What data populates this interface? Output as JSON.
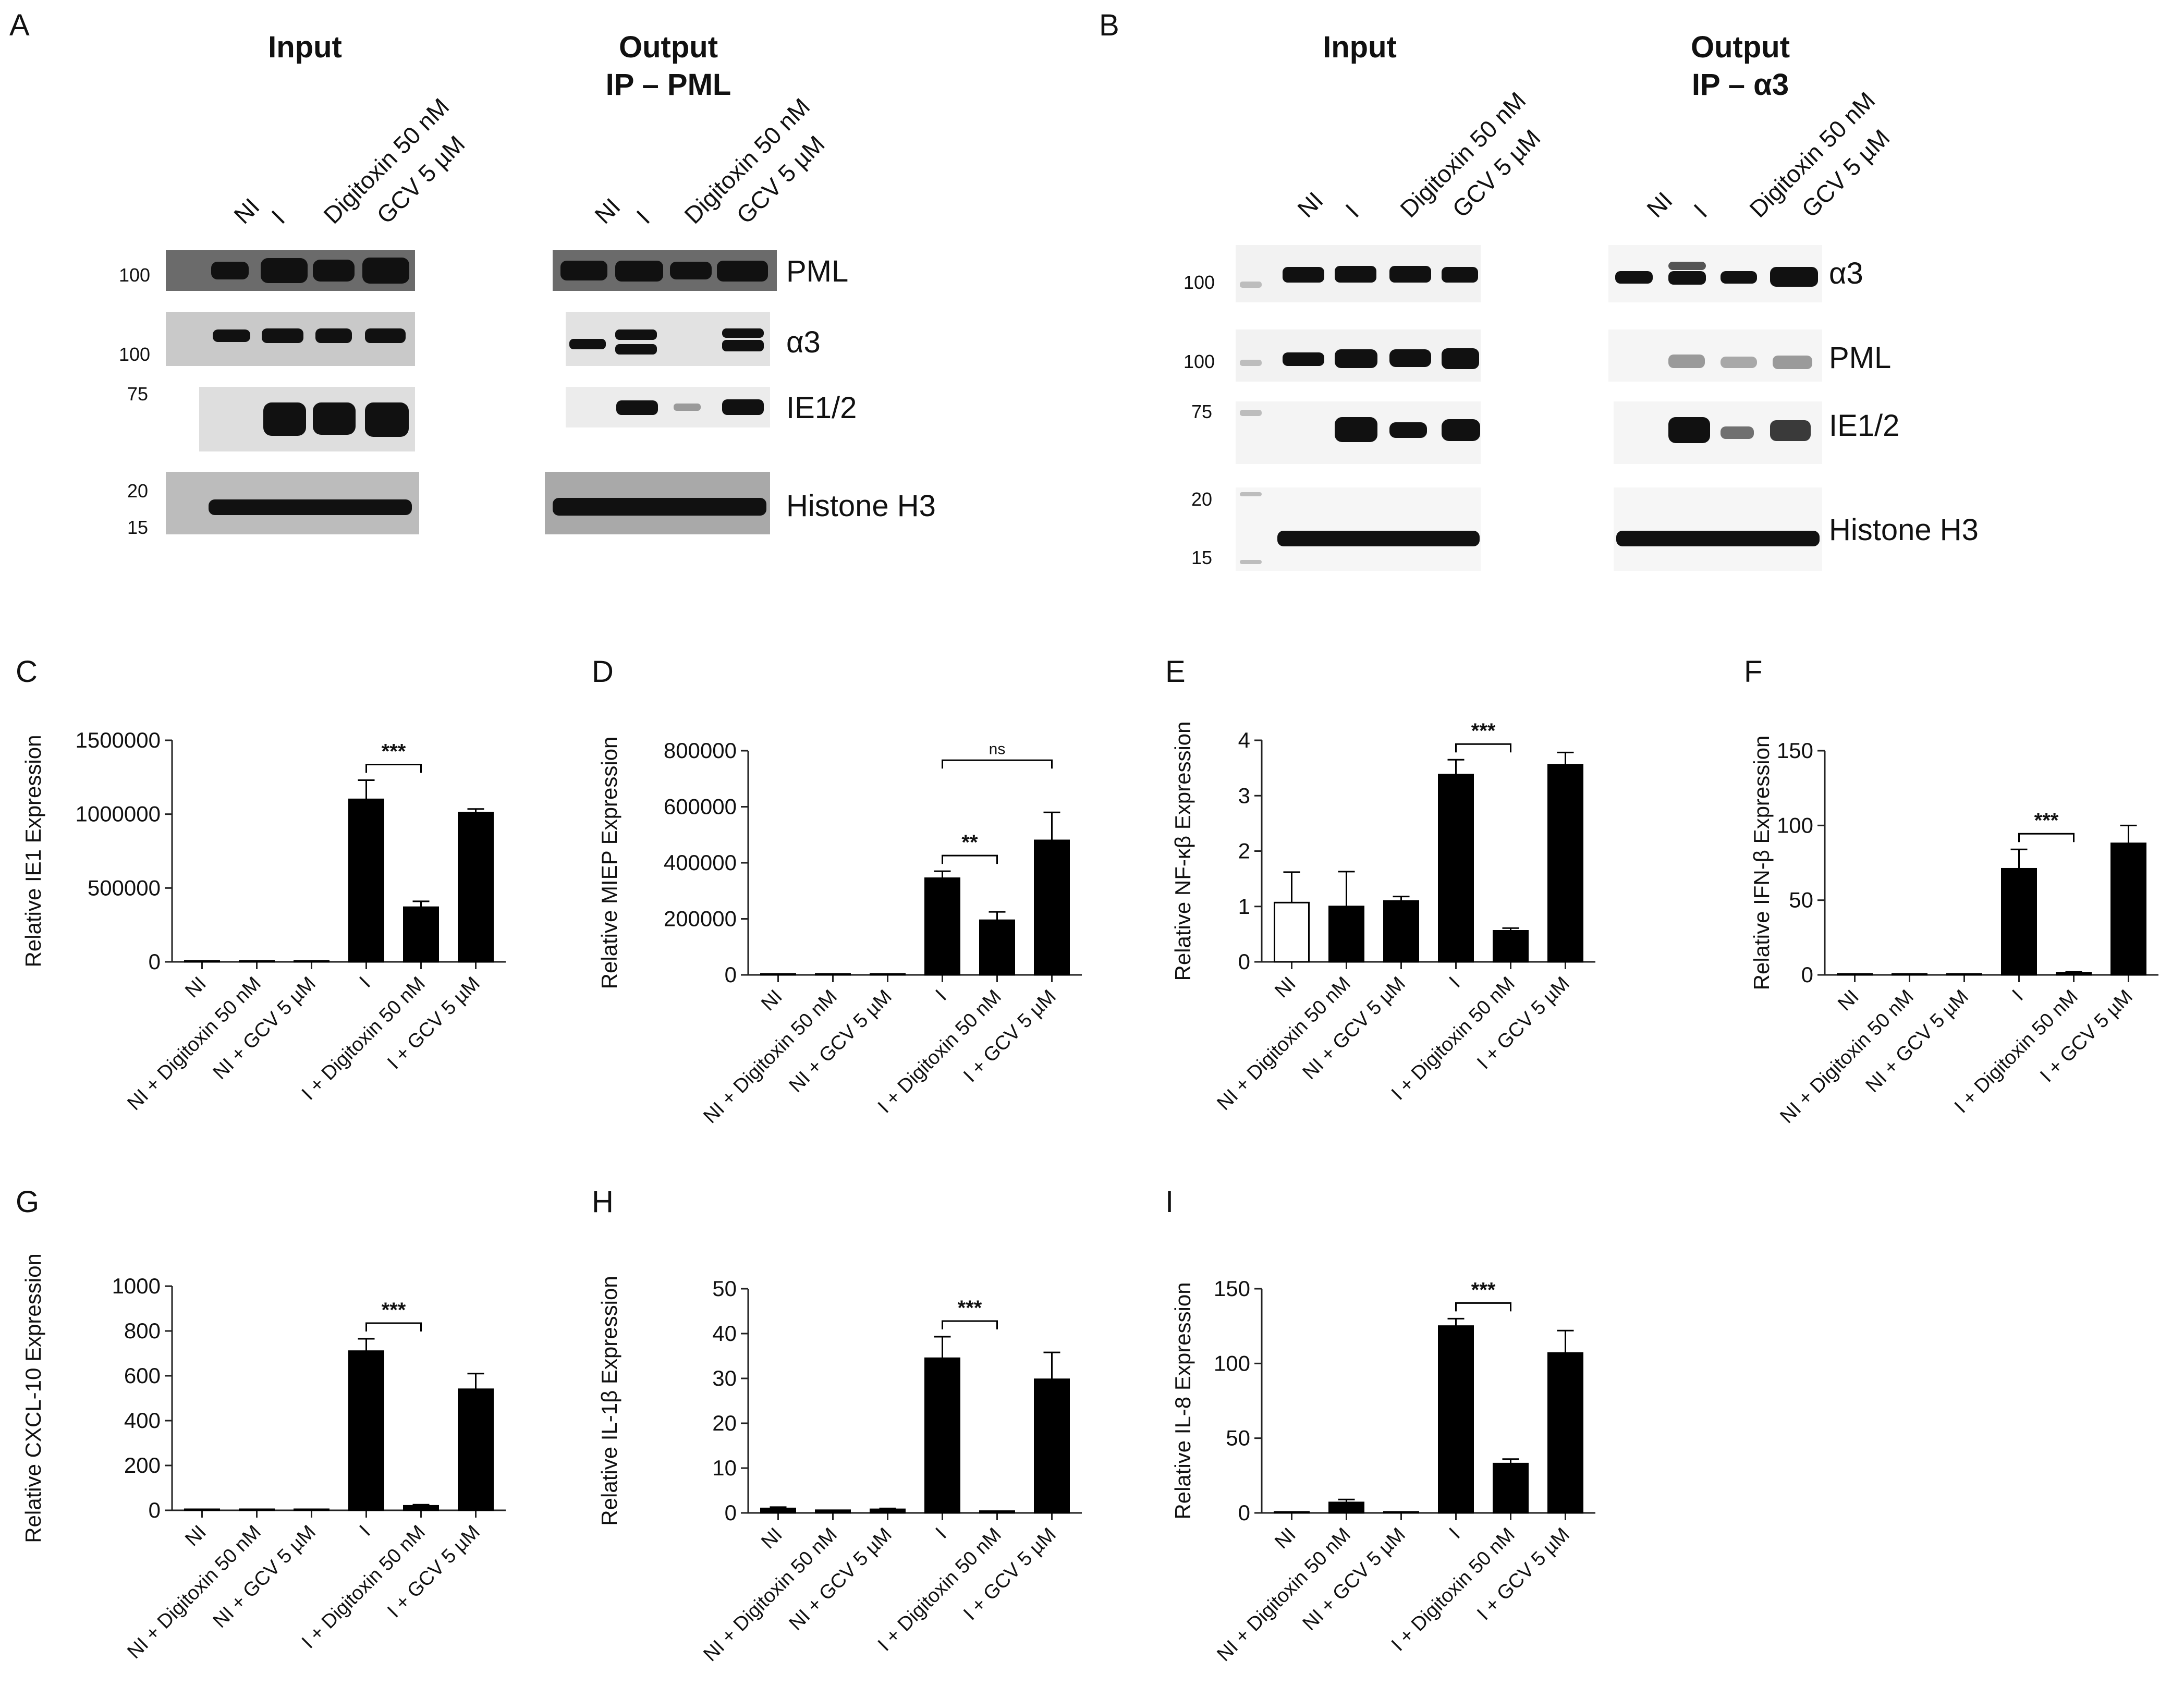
{
  "blots": {
    "A": {
      "letter": "A",
      "input_title": "Input",
      "output_title_1": "Output",
      "output_title_2": "IP – PML",
      "lanes": [
        "NI",
        "I",
        "Digitoxin 50 nM",
        "GCV 5 µM"
      ],
      "proteins": [
        "PML",
        "α3",
        "IE1/2",
        "Histone H3"
      ],
      "mw_markers": [
        "100",
        "100",
        "75",
        "20",
        "15"
      ]
    },
    "B": {
      "letter": "B",
      "input_title": "Input",
      "output_title_1": "Output",
      "output_title_2": "IP – α3",
      "lanes": [
        "NI",
        "I",
        "Digitoxin 50 nM",
        "GCV 5 µM"
      ],
      "proteins": [
        "α3",
        "PML",
        "IE1/2",
        "Histone H3"
      ],
      "mw_markers": [
        "100",
        "100",
        "75",
        "20",
        "15"
      ]
    }
  },
  "chart_data": [
    {
      "id": "C",
      "type": "bar",
      "categories": [
        "NI",
        "NI + Digitoxin 50 nM",
        "NI + GCV 5 µM",
        "I",
        "I + Digitoxin 50 nM",
        "I + GCV 5 µM"
      ],
      "values": [
        0,
        0,
        0,
        1100000,
        370000,
        1010000
      ],
      "errors": [
        0,
        0,
        0,
        130000,
        40000,
        25000
      ],
      "fills": [
        "#000000",
        "#000000",
        "#000000",
        "#000000",
        "#000000",
        "#000000"
      ],
      "ylabel": "Relative IE1 Expression",
      "ylim": [
        0,
        1500000
      ],
      "yticks": [
        "0",
        "500000",
        "1000000",
        "1500000"
      ],
      "significance": [
        {
          "from": 3,
          "to": 4,
          "label": "***"
        }
      ]
    },
    {
      "id": "D",
      "type": "bar",
      "categories": [
        "NI",
        "NI + Digitoxin 50 nM",
        "NI + GCV 5 µM",
        "I",
        "I + Digitoxin 50 nM",
        "I + GCV 5 µM"
      ],
      "values": [
        0,
        0,
        0,
        345000,
        195000,
        480000
      ],
      "errors": [
        0,
        0,
        0,
        25000,
        30000,
        100000
      ],
      "fills": [
        "#000000",
        "#000000",
        "#000000",
        "#000000",
        "#000000",
        "#000000"
      ],
      "ylabel": "Relative MIEP Expression",
      "ylim": [
        0,
        800000
      ],
      "yticks": [
        "0",
        "200000",
        "400000",
        "600000",
        "800000"
      ],
      "significance": [
        {
          "from": 3,
          "to": 4,
          "label": "**"
        },
        {
          "from": 3,
          "to": 5,
          "label": "ns"
        }
      ]
    },
    {
      "id": "E",
      "type": "bar",
      "categories": [
        "NI",
        "NI + Digitoxin 50 nM",
        "NI + GCV 5 µM",
        "I",
        "I + Digitoxin 50 nM",
        "I + GCV 5 µM"
      ],
      "values": [
        1.07,
        1.0,
        1.1,
        3.38,
        0.56,
        3.56
      ],
      "errors": [
        0.55,
        0.63,
        0.08,
        0.27,
        0.05,
        0.22
      ],
      "fills": [
        "#ffffff",
        "#000000",
        "#000000",
        "#000000",
        "#000000",
        "#000000"
      ],
      "ylabel": "Relative NF-κβ Expression",
      "ylim": [
        0,
        4
      ],
      "yticks": [
        "0",
        "1",
        "2",
        "3",
        "4"
      ],
      "significance": [
        {
          "from": 3,
          "to": 4,
          "label": "***"
        }
      ]
    },
    {
      "id": "F",
      "type": "bar",
      "categories": [
        "NI",
        "NI + Digitoxin 50 nM",
        "NI + GCV 5 µM",
        "I",
        "I + Digitoxin 50 nM",
        "I + GCV 5 µM"
      ],
      "values": [
        0.5,
        0.5,
        0,
        71,
        1.5,
        88
      ],
      "errors": [
        0,
        0,
        0,
        13,
        0.5,
        12
      ],
      "fills": [
        "#000000",
        "#000000",
        "#000000",
        "#000000",
        "#000000",
        "#000000"
      ],
      "ylabel": "Relative IFN-β Expression",
      "ylim": [
        0,
        150
      ],
      "yticks": [
        "0",
        "50",
        "100",
        "150"
      ],
      "significance": [
        {
          "from": 3,
          "to": 4,
          "label": "***"
        }
      ]
    },
    {
      "id": "G",
      "type": "bar",
      "categories": [
        "NI",
        "NI + Digitoxin 50 nM",
        "NI + GCV 5 µM",
        "I",
        "I + Digitoxin 50 nM",
        "I + GCV 5 µM"
      ],
      "values": [
        2,
        0,
        2,
        710,
        20,
        540
      ],
      "errors": [
        0,
        0,
        0,
        55,
        5,
        70
      ],
      "fills": [
        "#000000",
        "#000000",
        "#000000",
        "#000000",
        "#000000",
        "#000000"
      ],
      "ylabel": "Relative CXCL-10 Expression",
      "ylim": [
        0,
        1000
      ],
      "yticks": [
        "0",
        "200",
        "400",
        "600",
        "800",
        "1000"
      ],
      "significance": [
        {
          "from": 3,
          "to": 4,
          "label": "***"
        }
      ]
    },
    {
      "id": "H",
      "type": "bar",
      "categories": [
        "NI",
        "NI + Digitoxin 50 nM",
        "NI + GCV 5 µM",
        "I",
        "I + Digitoxin 50 nM",
        "I + GCV 5 µM"
      ],
      "values": [
        1.0,
        0.6,
        0.8,
        34.5,
        0.4,
        29.8
      ],
      "errors": [
        0.3,
        0,
        0.2,
        4.8,
        0,
        6
      ],
      "fills": [
        "#000000",
        "#000000",
        "#000000",
        "#000000",
        "#000000",
        "#000000"
      ],
      "ylabel": "Relative IL-1β Expression",
      "ylim": [
        0,
        50
      ],
      "yticks": [
        "0",
        "10",
        "20",
        "30",
        "40",
        "50"
      ],
      "significance": [
        {
          "from": 3,
          "to": 4,
          "label": "***"
        }
      ]
    },
    {
      "id": "I",
      "type": "bar",
      "categories": [
        "NI",
        "NI + Digitoxin 50 nM",
        "NI + GCV 5 µM",
        "I",
        "I + Digitoxin 50 nM",
        "I + GCV 5 µM"
      ],
      "values": [
        0.5,
        7,
        0.5,
        125,
        33,
        107
      ],
      "errors": [
        0,
        2,
        0,
        5,
        3,
        15
      ],
      "fills": [
        "#000000",
        "#000000",
        "#000000",
        "#000000",
        "#000000",
        "#000000"
      ],
      "ylabel": "Relative IL-8 Expression",
      "ylim": [
        0,
        150
      ],
      "yticks": [
        "0",
        "50",
        "100",
        "150"
      ],
      "significance": [
        {
          "from": 3,
          "to": 4,
          "label": "***"
        }
      ]
    }
  ]
}
